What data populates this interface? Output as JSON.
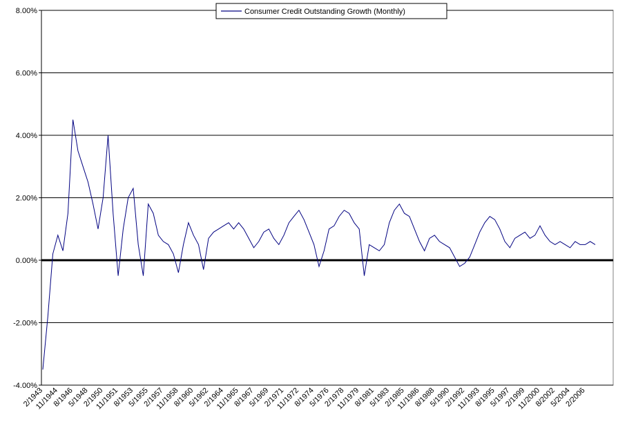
{
  "chart_data": {
    "type": "line",
    "series": [
      {
        "name": "Consumer Credit Outstanding Growth (Monthly)",
        "color": "#000080",
        "values": [
          -3.5,
          -1.8,
          0.2,
          0.8,
          0.3,
          1.5,
          4.5,
          3.5,
          3.0,
          2.5,
          1.8,
          1.0,
          2.0,
          4.0,
          1.5,
          -0.5,
          1.0,
          2.0,
          2.3,
          0.5,
          -0.5,
          1.8,
          1.5,
          0.8,
          0.6,
          0.5,
          0.2,
          -0.4,
          0.5,
          1.2,
          0.8,
          0.5,
          -0.3,
          0.7,
          0.9,
          1.0,
          1.1,
          1.2,
          1.0,
          1.2,
          1.0,
          0.7,
          0.4,
          0.6,
          0.9,
          1.0,
          0.7,
          0.5,
          0.8,
          1.2,
          1.4,
          1.6,
          1.3,
          0.9,
          0.5,
          -0.2,
          0.3,
          1.0,
          1.1,
          1.4,
          1.6,
          1.5,
          1.2,
          1.0,
          -0.5,
          0.5,
          0.4,
          0.3,
          0.5,
          1.2,
          1.6,
          1.8,
          1.5,
          1.4,
          1.0,
          0.6,
          0.3,
          0.7,
          0.8,
          0.6,
          0.5,
          0.4,
          0.1,
          -0.2,
          -0.1,
          0.1,
          0.5,
          0.9,
          1.2,
          1.4,
          1.3,
          1.0,
          0.6,
          0.4,
          0.7,
          0.8,
          0.9,
          0.7,
          0.8,
          1.1,
          0.8,
          0.6,
          0.5,
          0.6,
          0.5,
          0.4,
          0.6,
          0.5,
          0.5,
          0.6,
          0.5
        ]
      }
    ],
    "categories": [
      "2/1943",
      null,
      null,
      "11/1944",
      null,
      null,
      "8/1946",
      null,
      null,
      "5/1948",
      null,
      null,
      "2/1950",
      null,
      null,
      "11/1951",
      null,
      null,
      "8/1953",
      null,
      null,
      "5/1955",
      null,
      null,
      "2/1957",
      null,
      null,
      "11/1958",
      null,
      null,
      "8/1960",
      null,
      null,
      "5/1962",
      null,
      null,
      "2/1964",
      null,
      null,
      "11/1965",
      null,
      null,
      "8/1967",
      null,
      null,
      "5/1969",
      null,
      null,
      "2/1971",
      null,
      null,
      "11/1972",
      null,
      null,
      "8/1974",
      null,
      null,
      "5/1976",
      null,
      null,
      "2/1978",
      null,
      null,
      "11/1979",
      null,
      null,
      "8/1981",
      null,
      null,
      "5/1983",
      null,
      null,
      "2/1985",
      null,
      null,
      "11/1986",
      null,
      null,
      "8/1988",
      null,
      null,
      "5/1990",
      null,
      null,
      "2/1992",
      null,
      null,
      "11/1993",
      null,
      null,
      "8/1995",
      null,
      null,
      "5/1997",
      null,
      null,
      "2/1999",
      null,
      null,
      "11/2000",
      null,
      null,
      "8/2002",
      null,
      null,
      "5/2004",
      null,
      null,
      "2/2006",
      null,
      null
    ],
    "ylim": [
      -4,
      8
    ],
    "yticks": [
      {
        "value": -4,
        "label": "-4.00%"
      },
      {
        "value": -2,
        "label": "-2.00%"
      },
      {
        "value": 0,
        "label": "0.00%"
      },
      {
        "value": 2,
        "label": "2.00%"
      },
      {
        "value": 4,
        "label": "4.00%"
      },
      {
        "value": 6,
        "label": "6.00%"
      },
      {
        "value": 8,
        "label": "8.00%"
      }
    ],
    "grid": true,
    "legend": "top"
  }
}
